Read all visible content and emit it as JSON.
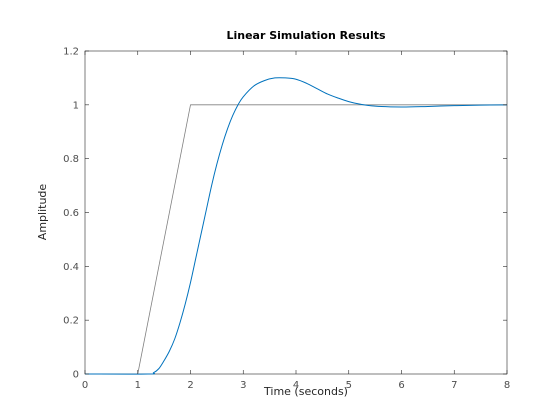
{
  "chart_data": {
    "type": "line",
    "title": "Linear Simulation Results",
    "xlabel": "Time (seconds)",
    "ylabel": "Amplitude",
    "xlim": [
      0,
      8
    ],
    "ylim": [
      0,
      1.2
    ],
    "xticks": [
      0,
      1,
      2,
      3,
      4,
      5,
      6,
      7,
      8
    ],
    "yticks": [
      0,
      0.2,
      0.4,
      0.6,
      0.8,
      1,
      1.2
    ],
    "xtick_labels": [
      "0",
      "1",
      "2",
      "3",
      "4",
      "5",
      "6",
      "7",
      "8"
    ],
    "ytick_labels": [
      "0",
      "0.2",
      "0.4",
      "0.6",
      "0.8",
      "1",
      "1.2"
    ],
    "grid": false,
    "box": true,
    "series": [
      {
        "color": "#808080",
        "points": [
          [
            0,
            0
          ],
          [
            1,
            0
          ],
          [
            2,
            1
          ],
          [
            8,
            1
          ]
        ]
      },
      {
        "color": "#0072bd",
        "points": [
          [
            0,
            0
          ],
          [
            1.2,
            0
          ],
          [
            1.3,
            0.005
          ],
          [
            1.4,
            0.02
          ],
          [
            1.5,
            0.05
          ],
          [
            1.6,
            0.085
          ],
          [
            1.7,
            0.13
          ],
          [
            1.8,
            0.19
          ],
          [
            1.9,
            0.26
          ],
          [
            2.0,
            0.34
          ],
          [
            2.1,
            0.43
          ],
          [
            2.2,
            0.52
          ],
          [
            2.3,
            0.61
          ],
          [
            2.4,
            0.7
          ],
          [
            2.5,
            0.78
          ],
          [
            2.6,
            0.85
          ],
          [
            2.7,
            0.91
          ],
          [
            2.8,
            0.96
          ],
          [
            2.9,
            1.0
          ],
          [
            3.0,
            1.03
          ],
          [
            3.2,
            1.07
          ],
          [
            3.4,
            1.09
          ],
          [
            3.6,
            1.1
          ],
          [
            3.8,
            1.1
          ],
          [
            4.0,
            1.095
          ],
          [
            4.2,
            1.08
          ],
          [
            4.4,
            1.06
          ],
          [
            4.6,
            1.04
          ],
          [
            4.8,
            1.025
          ],
          [
            5.0,
            1.012
          ],
          [
            5.2,
            1.003
          ],
          [
            5.5,
            0.995
          ],
          [
            6.0,
            0.992
          ],
          [
            6.5,
            0.994
          ],
          [
            7.0,
            0.997
          ],
          [
            7.5,
            0.999
          ],
          [
            8.0,
            1.0
          ]
        ]
      }
    ]
  }
}
